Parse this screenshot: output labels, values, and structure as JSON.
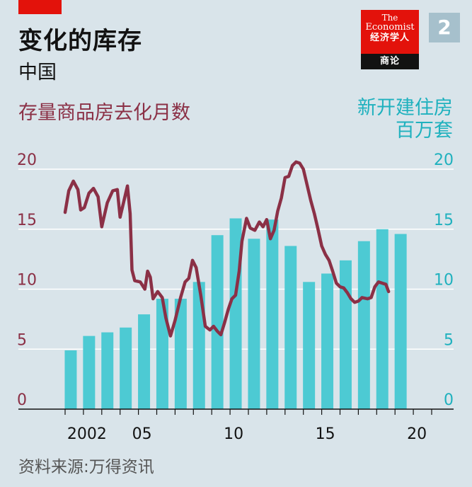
{
  "header": {
    "title": "变化的库存",
    "subtitle": "中国",
    "badge": "2"
  },
  "logo": {
    "line1": "The",
    "line2": "Economist",
    "line3": "经济学人",
    "line4": "商论"
  },
  "source": "资料来源:万得资讯",
  "colors": {
    "background": "#d9e4ea",
    "line": "#8b3046",
    "bars": "#4dcad3",
    "brand_red": "#e3120b",
    "right_axis_text": "#1fb1be"
  },
  "chart_data": {
    "type": "bar+line",
    "left_axis_label": "存量商品房去化月数",
    "right_axis_label_1": "新开建住房",
    "right_axis_label_2": "百万套",
    "y_ticks": [
      "0",
      "5",
      "10",
      "15",
      "20"
    ],
    "ylim": [
      0,
      20
    ],
    "xlim": [
      2001,
      2021
    ],
    "x_tick_labels": [
      {
        "x": 2002,
        "label": "2002"
      },
      {
        "x": 2005,
        "label": "05"
      },
      {
        "x": 2010,
        "label": "10"
      },
      {
        "x": 2015,
        "label": "15"
      },
      {
        "x": 2020,
        "label": "20"
      }
    ],
    "x_minor_ticks": [
      2001,
      2002,
      2003,
      2004,
      2005,
      2006,
      2007,
      2008,
      2009,
      2010,
      2011,
      2012,
      2013,
      2014,
      2015,
      2016,
      2017,
      2018,
      2019,
      2020,
      2021
    ],
    "bars": {
      "name": "新开建住房",
      "years": [
        2001,
        2002,
        2003,
        2004,
        2005,
        2006,
        2007,
        2008,
        2009,
        2010,
        2011,
        2012,
        2013,
        2014,
        2015,
        2016,
        2017,
        2018,
        2019,
        2020
      ],
      "values": [
        4.9,
        6.1,
        6.4,
        6.8,
        7.9,
        9.2,
        9.2,
        10.6,
        14.5,
        15.9,
        14.2,
        15.8,
        13.6,
        10.6,
        11.3,
        12.4,
        14.0,
        15.0,
        14.6,
        0
      ]
    },
    "line": {
      "name": "存量商品房去化月数",
      "points": [
        [
          2001.0,
          16.4
        ],
        [
          2001.2,
          18.2
        ],
        [
          2001.45,
          19.0
        ],
        [
          2001.7,
          18.3
        ],
        [
          2001.85,
          16.6
        ],
        [
          2002.05,
          16.8
        ],
        [
          2002.3,
          18.0
        ],
        [
          2002.55,
          18.4
        ],
        [
          2002.8,
          17.7
        ],
        [
          2003.0,
          15.2
        ],
        [
          2003.3,
          17.2
        ],
        [
          2003.6,
          18.2
        ],
        [
          2003.85,
          18.3
        ],
        [
          2004.0,
          16.0
        ],
        [
          2004.2,
          17.3
        ],
        [
          2004.4,
          18.6
        ],
        [
          2004.55,
          16.3
        ],
        [
          2004.65,
          11.6
        ],
        [
          2004.8,
          10.7
        ],
        [
          2005.1,
          10.6
        ],
        [
          2005.35,
          10.0
        ],
        [
          2005.5,
          11.5
        ],
        [
          2005.65,
          11.0
        ],
        [
          2005.8,
          9.2
        ],
        [
          2006.05,
          9.8
        ],
        [
          2006.3,
          9.3
        ],
        [
          2006.5,
          7.6
        ],
        [
          2006.75,
          6.1
        ],
        [
          2007.0,
          7.4
        ],
        [
          2007.3,
          9.3
        ],
        [
          2007.55,
          10.6
        ],
        [
          2007.75,
          10.9
        ],
        [
          2007.95,
          12.4
        ],
        [
          2008.15,
          11.8
        ],
        [
          2008.4,
          9.5
        ],
        [
          2008.65,
          6.9
        ],
        [
          2008.9,
          6.6
        ],
        [
          2009.1,
          6.9
        ],
        [
          2009.3,
          6.5
        ],
        [
          2009.5,
          6.2
        ],
        [
          2009.7,
          7.2
        ],
        [
          2009.9,
          8.3
        ],
        [
          2010.1,
          9.2
        ],
        [
          2010.3,
          9.5
        ],
        [
          2010.5,
          11.5
        ],
        [
          2010.65,
          14.0
        ],
        [
          2010.9,
          15.9
        ],
        [
          2011.1,
          15.1
        ],
        [
          2011.35,
          14.9
        ],
        [
          2011.6,
          15.6
        ],
        [
          2011.8,
          15.2
        ],
        [
          2012.0,
          15.8
        ],
        [
          2012.2,
          14.2
        ],
        [
          2012.4,
          14.9
        ],
        [
          2012.6,
          16.5
        ],
        [
          2012.8,
          17.6
        ],
        [
          2013.0,
          19.3
        ],
        [
          2013.2,
          19.4
        ],
        [
          2013.4,
          20.3
        ],
        [
          2013.6,
          20.6
        ],
        [
          2013.8,
          20.5
        ],
        [
          2014.0,
          20.0
        ],
        [
          2014.2,
          18.7
        ],
        [
          2014.4,
          17.4
        ],
        [
          2014.6,
          16.3
        ],
        [
          2014.8,
          15.0
        ],
        [
          2015.0,
          13.6
        ],
        [
          2015.2,
          12.9
        ],
        [
          2015.4,
          12.4
        ],
        [
          2015.6,
          11.5
        ],
        [
          2015.8,
          10.5
        ],
        [
          2016.0,
          10.2
        ],
        [
          2016.2,
          10.1
        ],
        [
          2016.4,
          9.7
        ],
        [
          2016.6,
          9.2
        ],
        [
          2016.8,
          8.9
        ],
        [
          2017.0,
          9.0
        ],
        [
          2017.2,
          9.3
        ],
        [
          2017.5,
          9.2
        ],
        [
          2017.7,
          9.3
        ],
        [
          2017.9,
          10.2
        ],
        [
          2018.1,
          10.6
        ],
        [
          2018.3,
          10.5
        ],
        [
          2018.5,
          10.4
        ],
        [
          2018.65,
          9.8
        ]
      ]
    }
  }
}
